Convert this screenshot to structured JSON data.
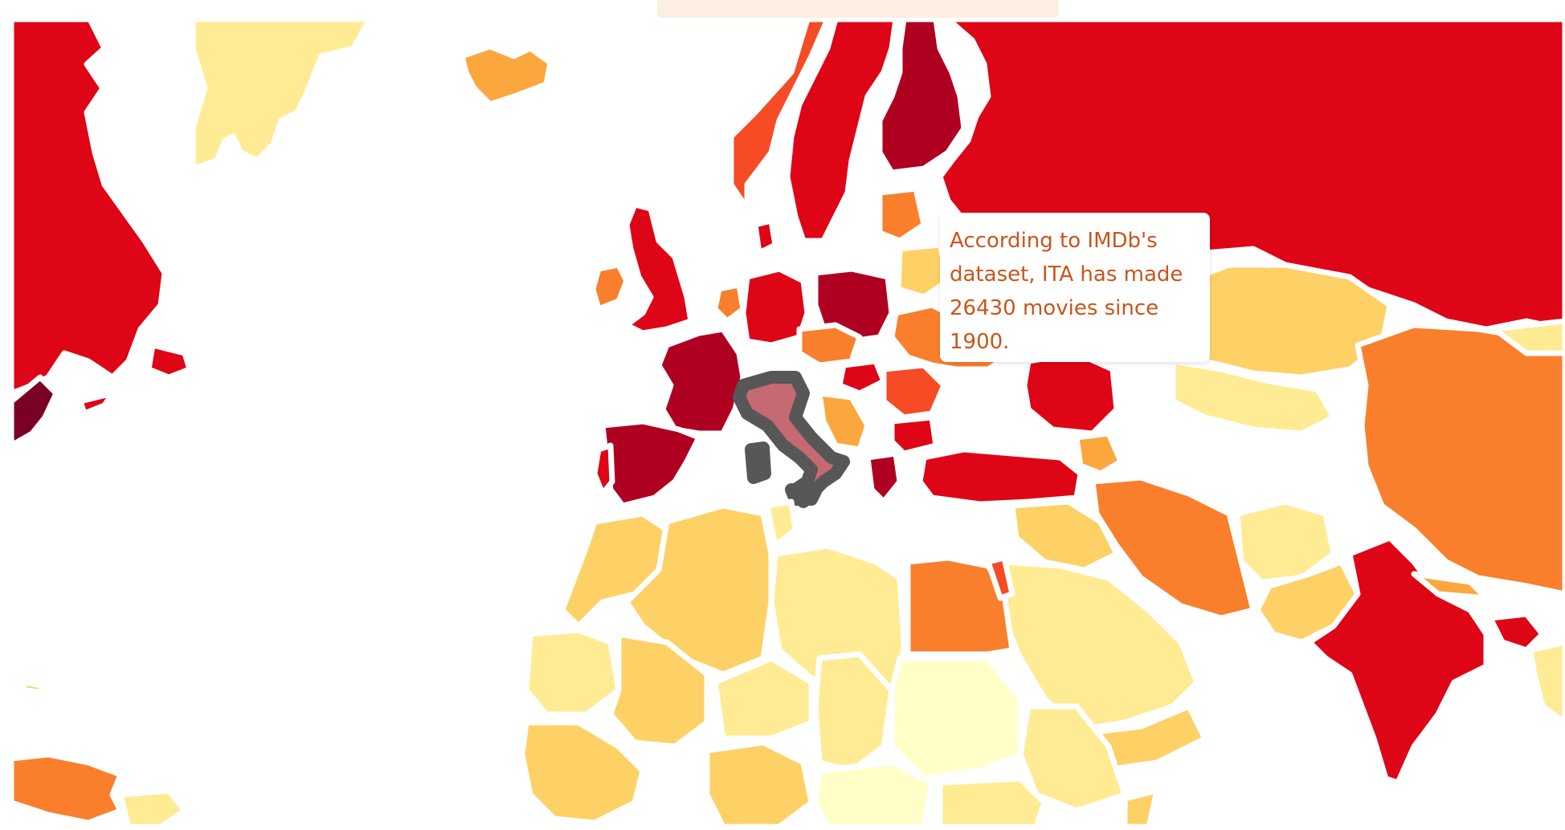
{
  "header": {
    "title": ""
  },
  "tooltip": {
    "text": "According to IMDb's dataset, ITA has made 26430 movies since 1900."
  },
  "colors": {
    "scale": [
      "#ffffc8",
      "#feeb93",
      "#fdd166",
      "#fca63e",
      "#fa7f2c",
      "#f64b24",
      "#de0517",
      "#af0022",
      "#7a0025"
    ],
    "hover_outline": "#575757",
    "hover_fill": "#c56a72",
    "background": "#ffffff",
    "tooltip_text": "#c8561b"
  },
  "map": {
    "hovered_country": "ITA",
    "countries": [
      {
        "code": "GRL",
        "level": 1
      },
      {
        "code": "ISL",
        "level": 3
      },
      {
        "code": "NOR",
        "level": 5
      },
      {
        "code": "SWE",
        "level": 6
      },
      {
        "code": "FIN",
        "level": 7
      },
      {
        "code": "RUS",
        "level": 6
      },
      {
        "code": "GBR",
        "level": 6
      },
      {
        "code": "IRL",
        "level": 4
      },
      {
        "code": "FRA",
        "level": 7
      },
      {
        "code": "ESP",
        "level": 7
      },
      {
        "code": "PRT",
        "level": 6
      },
      {
        "code": "DEU",
        "level": 6
      },
      {
        "code": "POL",
        "level": 7
      },
      {
        "code": "ROU",
        "level": 5
      },
      {
        "code": "UKR",
        "level": 4
      },
      {
        "code": "TUR",
        "level": 6
      },
      {
        "code": "ITA",
        "level": 6
      },
      {
        "code": "IRN",
        "level": 4
      },
      {
        "code": "KAZ",
        "level": 2
      },
      {
        "code": "CHN",
        "level": 4
      },
      {
        "code": "IND",
        "level": 6
      },
      {
        "code": "EGY",
        "level": 4
      },
      {
        "code": "DZA",
        "level": 2
      },
      {
        "code": "LBY",
        "level": 1
      },
      {
        "code": "SAU",
        "level": 1
      },
      {
        "code": "CAN",
        "level": 6
      },
      {
        "code": "USA",
        "level": 8
      }
    ]
  }
}
